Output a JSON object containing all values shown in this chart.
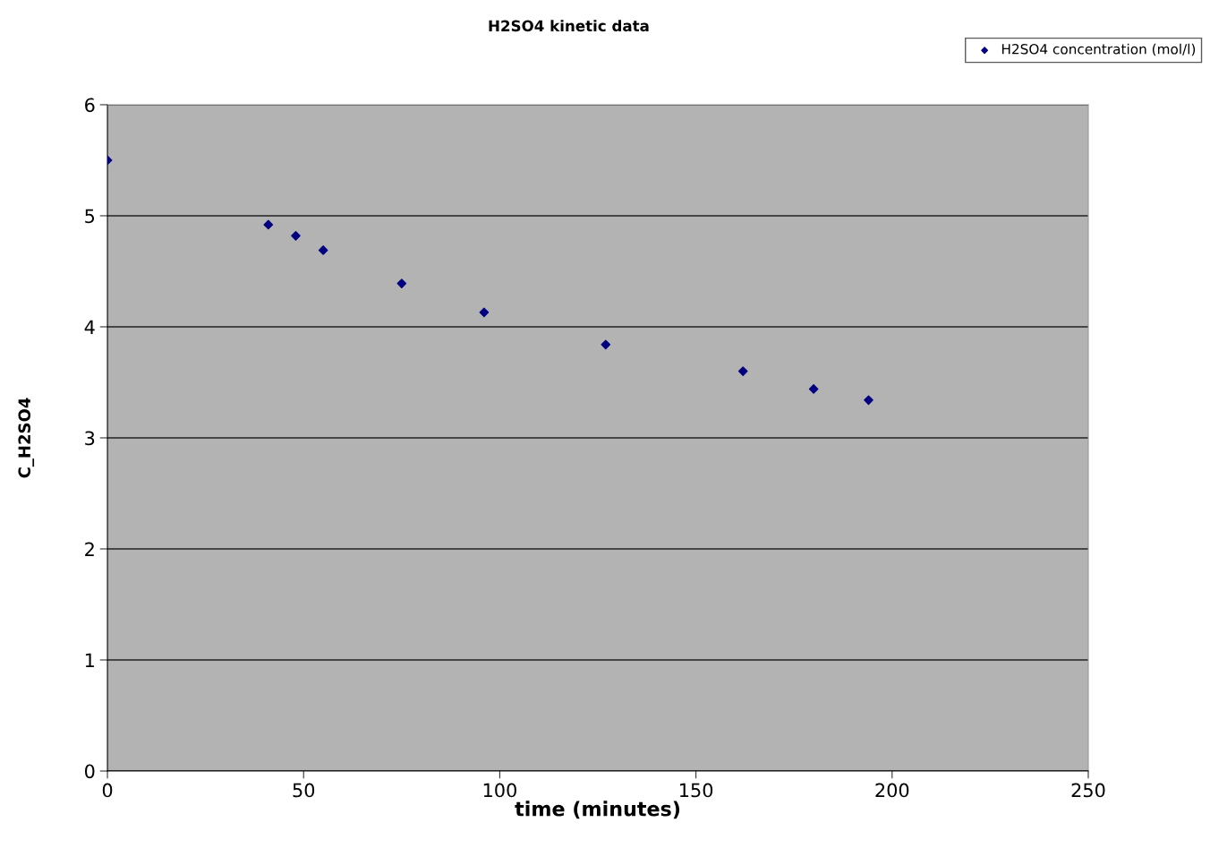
{
  "chart_data": {
    "type": "scatter",
    "title": "H2SO4 kinetic data",
    "xlabel": "time (minutes)",
    "ylabel": "C_H2SO4",
    "x": [
      0,
      41,
      48,
      55,
      75,
      96,
      127,
      162,
      180,
      194
    ],
    "series": [
      {
        "name": "H2SO4 concentration (mol/l)",
        "color": "#000080",
        "values": [
          5.5,
          4.92,
          4.82,
          4.69,
          4.39,
          4.13,
          3.84,
          3.6,
          3.44,
          3.34
        ]
      }
    ],
    "xlim": [
      0,
      250
    ],
    "xticks": [
      0,
      50,
      100,
      150,
      200,
      250
    ],
    "ylim": [
      0,
      6
    ],
    "yticks": [
      0,
      1,
      2,
      3,
      4,
      5,
      6
    ],
    "grid": "y",
    "legend": "top right",
    "marker": "diamond"
  }
}
